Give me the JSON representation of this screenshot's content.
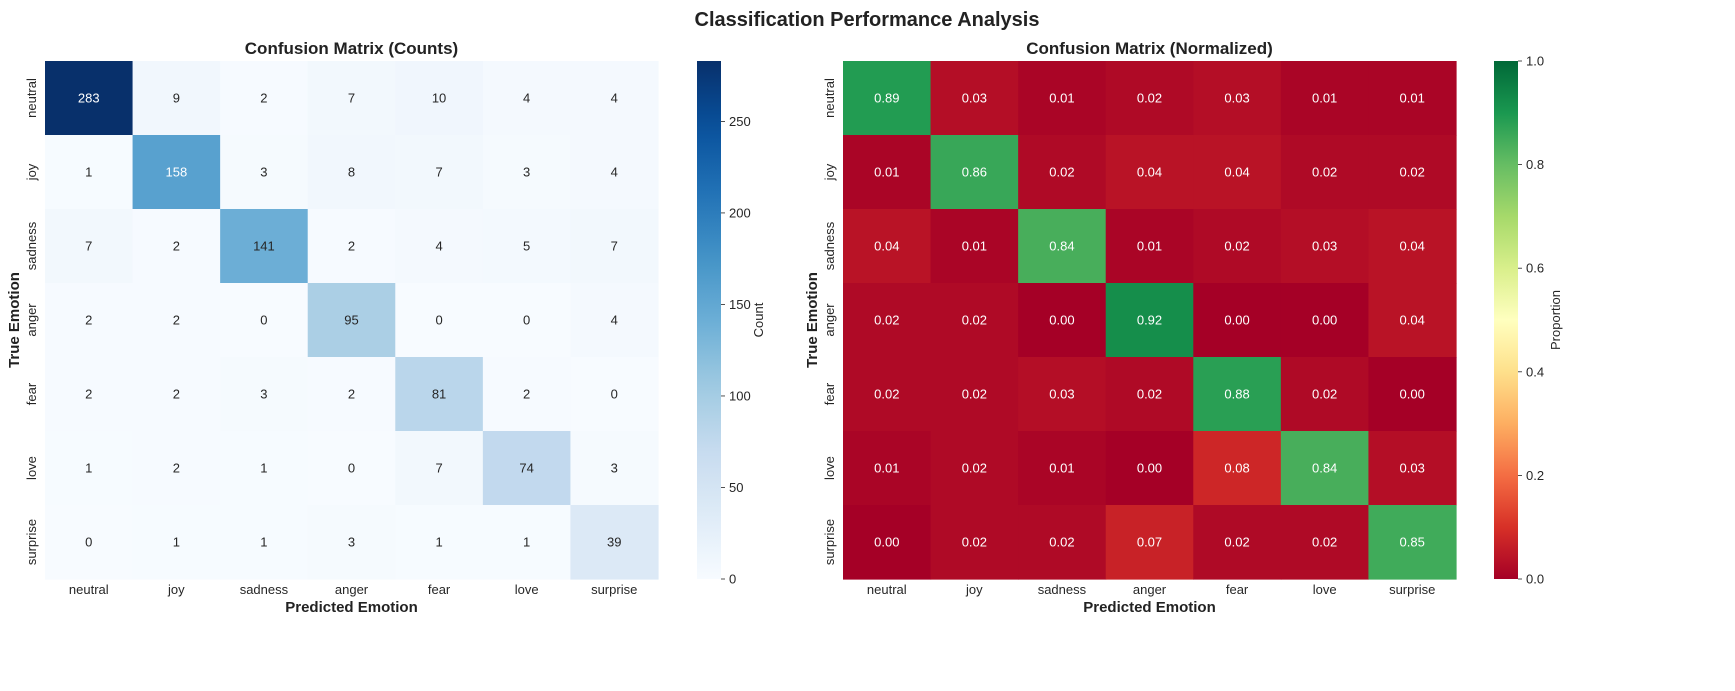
{
  "figure": {
    "suptitle": "Classification Performance Analysis"
  },
  "chart_data": [
    {
      "type": "heatmap",
      "title": "Confusion Matrix (Counts)",
      "xlabel": "Predicted Emotion",
      "ylabel": "True Emotion",
      "x_categories": [
        "neutral",
        "joy",
        "sadness",
        "anger",
        "fear",
        "love",
        "surprise"
      ],
      "y_categories": [
        "neutral",
        "joy",
        "sadness",
        "anger",
        "fear",
        "love",
        "surprise"
      ],
      "values": [
        [
          283,
          9,
          2,
          7,
          10,
          4,
          4
        ],
        [
          1,
          158,
          3,
          8,
          7,
          3,
          4
        ],
        [
          7,
          2,
          141,
          2,
          4,
          5,
          7
        ],
        [
          2,
          2,
          0,
          95,
          0,
          0,
          4
        ],
        [
          2,
          2,
          3,
          2,
          81,
          2,
          0
        ],
        [
          1,
          2,
          1,
          0,
          7,
          74,
          3
        ],
        [
          0,
          1,
          1,
          3,
          1,
          1,
          39
        ]
      ],
      "value_format": "int",
      "colormap": "Blues",
      "vmin": 0,
      "vmax": 283,
      "colorbar": {
        "label": "Count",
        "ticks": [
          0,
          50,
          100,
          150,
          200,
          250
        ]
      }
    },
    {
      "type": "heatmap",
      "title": "Confusion Matrix (Normalized)",
      "xlabel": "Predicted Emotion",
      "ylabel": "True Emotion",
      "x_categories": [
        "neutral",
        "joy",
        "sadness",
        "anger",
        "fear",
        "love",
        "surprise"
      ],
      "y_categories": [
        "neutral",
        "joy",
        "sadness",
        "anger",
        "fear",
        "love",
        "surprise"
      ],
      "values": [
        [
          0.89,
          0.03,
          0.01,
          0.02,
          0.03,
          0.01,
          0.01
        ],
        [
          0.01,
          0.86,
          0.02,
          0.04,
          0.04,
          0.02,
          0.02
        ],
        [
          0.04,
          0.01,
          0.84,
          0.01,
          0.02,
          0.03,
          0.04
        ],
        [
          0.02,
          0.02,
          0.0,
          0.92,
          0.0,
          0.0,
          0.04
        ],
        [
          0.02,
          0.02,
          0.03,
          0.02,
          0.88,
          0.02,
          0.0
        ],
        [
          0.01,
          0.02,
          0.01,
          0.0,
          0.08,
          0.84,
          0.03
        ],
        [
          0.0,
          0.02,
          0.02,
          0.07,
          0.02,
          0.02,
          0.85
        ]
      ],
      "value_format": "2f",
      "colormap": "RdYlGn",
      "vmin": 0.0,
      "vmax": 1.0,
      "colorbar": {
        "label": "Proportion",
        "ticks": [
          "0.0",
          "0.2",
          "0.4",
          "0.6",
          "0.8",
          "1.0"
        ]
      }
    }
  ]
}
